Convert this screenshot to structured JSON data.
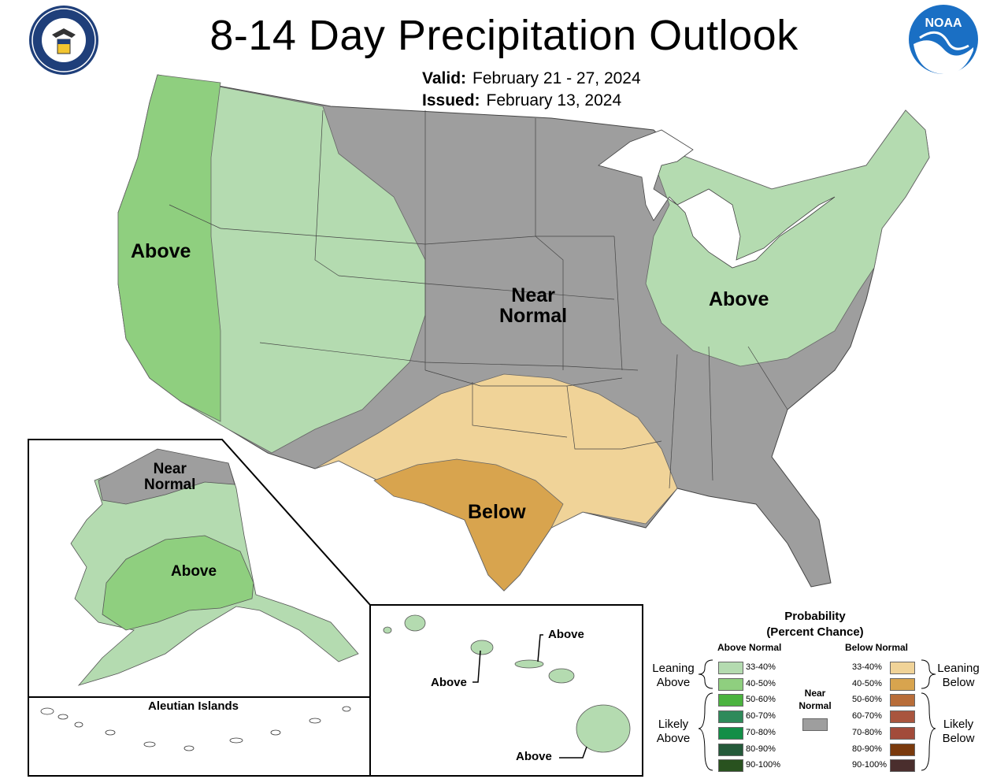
{
  "header": {
    "title": "8-14 Day Precipitation Outlook",
    "valid_label": "Valid:",
    "valid_value": "February 21 - 27, 2024",
    "issued_label": "Issued:",
    "issued_value": "February 13, 2024"
  },
  "logos": {
    "left": "department-of-commerce-seal",
    "left_text": "DEPARTMENT OF COMMERCE · UNITED STATES OF AMERICA",
    "right": "noaa-logo",
    "right_text": "NOAA"
  },
  "map_labels": {
    "west": "Above",
    "central_1": "Near",
    "central_2": "Normal",
    "east": "Above",
    "south": "Below",
    "alaska_near_1": "Near",
    "alaska_near_2": "Normal",
    "alaska_above": "Above",
    "aleutian": "Aleutian Islands",
    "hawaii_1": "Above",
    "hawaii_2": "Above",
    "hawaii_3": "Above"
  },
  "legend": {
    "title_1": "Probability",
    "title_2": "(Percent Chance)",
    "above_head": "Above Normal",
    "below_head": "Below Normal",
    "near_head_1": "Near",
    "near_head_2": "Normal",
    "leaning_above_1": "Leaning",
    "leaning_above_2": "Above",
    "likely_above_1": "Likely",
    "likely_above_2": "Above",
    "leaning_below_1": "Leaning",
    "leaning_below_2": "Below",
    "likely_below_1": "Likely",
    "likely_below_2": "Below",
    "above_items": [
      {
        "label": "33-40%",
        "color": "#b4dbb0"
      },
      {
        "label": "40-50%",
        "color": "#8fcf7f"
      },
      {
        "label": "50-60%",
        "color": "#4bb33f"
      },
      {
        "label": "60-70%",
        "color": "#2e8a5a"
      },
      {
        "label": "70-80%",
        "color": "#138e47"
      },
      {
        "label": "80-90%",
        "color": "#245a3a"
      },
      {
        "label": "90-100%",
        "color": "#29521f"
      }
    ],
    "below_items": [
      {
        "label": "33-40%",
        "color": "#f0d398"
      },
      {
        "label": "40-50%",
        "color": "#d8a44e"
      },
      {
        "label": "50-60%",
        "color": "#b86d39"
      },
      {
        "label": "60-70%",
        "color": "#a9553e"
      },
      {
        "label": "70-80%",
        "color": "#a24b3a"
      },
      {
        "label": "80-90%",
        "color": "#7a3a0d"
      },
      {
        "label": "90-100%",
        "color": "#4a2e2d"
      }
    ],
    "near_color": "#9e9e9e"
  },
  "colors": {
    "above_33_40": "#b4dbb0",
    "above_40_50": "#8fcf7f",
    "near": "#9e9e9e",
    "below_33_40": "#f0d398",
    "below_40_50": "#d8a44e"
  }
}
